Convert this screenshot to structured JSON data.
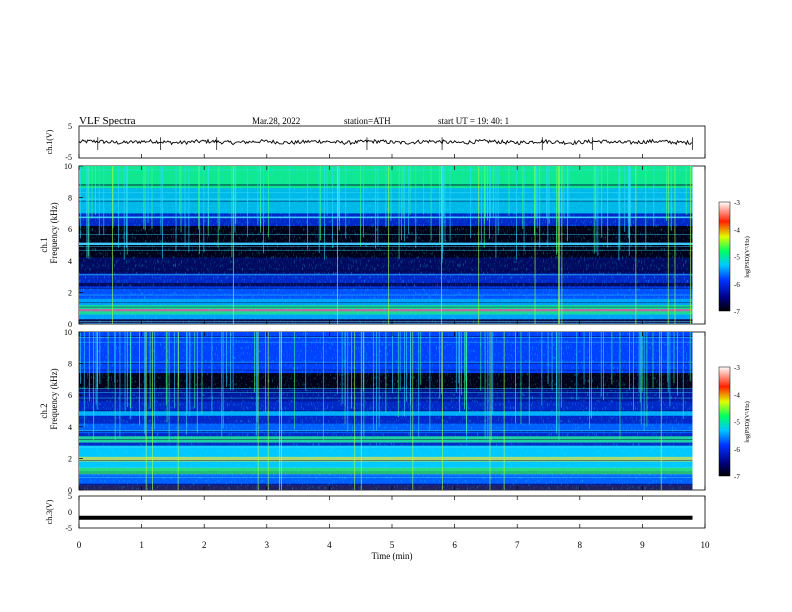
{
  "header": {
    "title": "VLF  Spectra",
    "date": "Mar.28, 2022",
    "station": "station=ATH",
    "start_ut": "start  UT  =   19: 40: 1"
  },
  "chart_data": [
    {
      "type": "line",
      "name": "ch1-waveform",
      "ylabel": "ch.1(V)",
      "ylim": [
        -5,
        5
      ],
      "yticks": [
        "5",
        "-5"
      ],
      "xlim": [
        0,
        10
      ],
      "approx_level": 0
    },
    {
      "type": "heatmap",
      "name": "ch1-spectrogram",
      "ylabel": "ch.1\nFrequency  (kHz)",
      "ylabel_lines": [
        "ch.1",
        "Frequency  (kHz)"
      ],
      "ylim": [
        0,
        10
      ],
      "yticks": [
        "0",
        "2",
        "4",
        "6",
        "8",
        "10"
      ],
      "xlim": [
        0,
        10
      ],
      "data_end_min": 9.8,
      "colorbar": {
        "label": "log(PSD)(V²/Hz)",
        "range": [
          -7,
          -3
        ],
        "ticks": [
          "-3",
          "-4",
          "-5",
          "-6",
          "-7"
        ]
      }
    },
    {
      "type": "heatmap",
      "name": "ch2-spectrogram",
      "ylabel_lines": [
        "ch.2",
        "Frequency  (kHz)"
      ],
      "ylim": [
        0,
        10
      ],
      "yticks": [
        "0",
        "2",
        "4",
        "6",
        "8",
        "10"
      ],
      "xlim": [
        0,
        10
      ],
      "data_end_min": 9.8,
      "colorbar": {
        "label": "log(PSD)(V²/Hz)",
        "range": [
          -7,
          -3
        ],
        "ticks": [
          "-3",
          "-4",
          "-5",
          "-6",
          "-7"
        ]
      }
    },
    {
      "type": "line",
      "name": "ch3-waveform",
      "ylabel": "ch.3(V)",
      "ylim": [
        -5,
        5
      ],
      "yticks": [
        "5",
        "0",
        "-5"
      ],
      "xlim": [
        0,
        10
      ],
      "approx_level": -1.8
    }
  ],
  "xaxis": {
    "label": "Time  (min)",
    "ticks": [
      "0",
      "1",
      "2",
      "3",
      "4",
      "5",
      "6",
      "7",
      "8",
      "9",
      "10"
    ]
  }
}
